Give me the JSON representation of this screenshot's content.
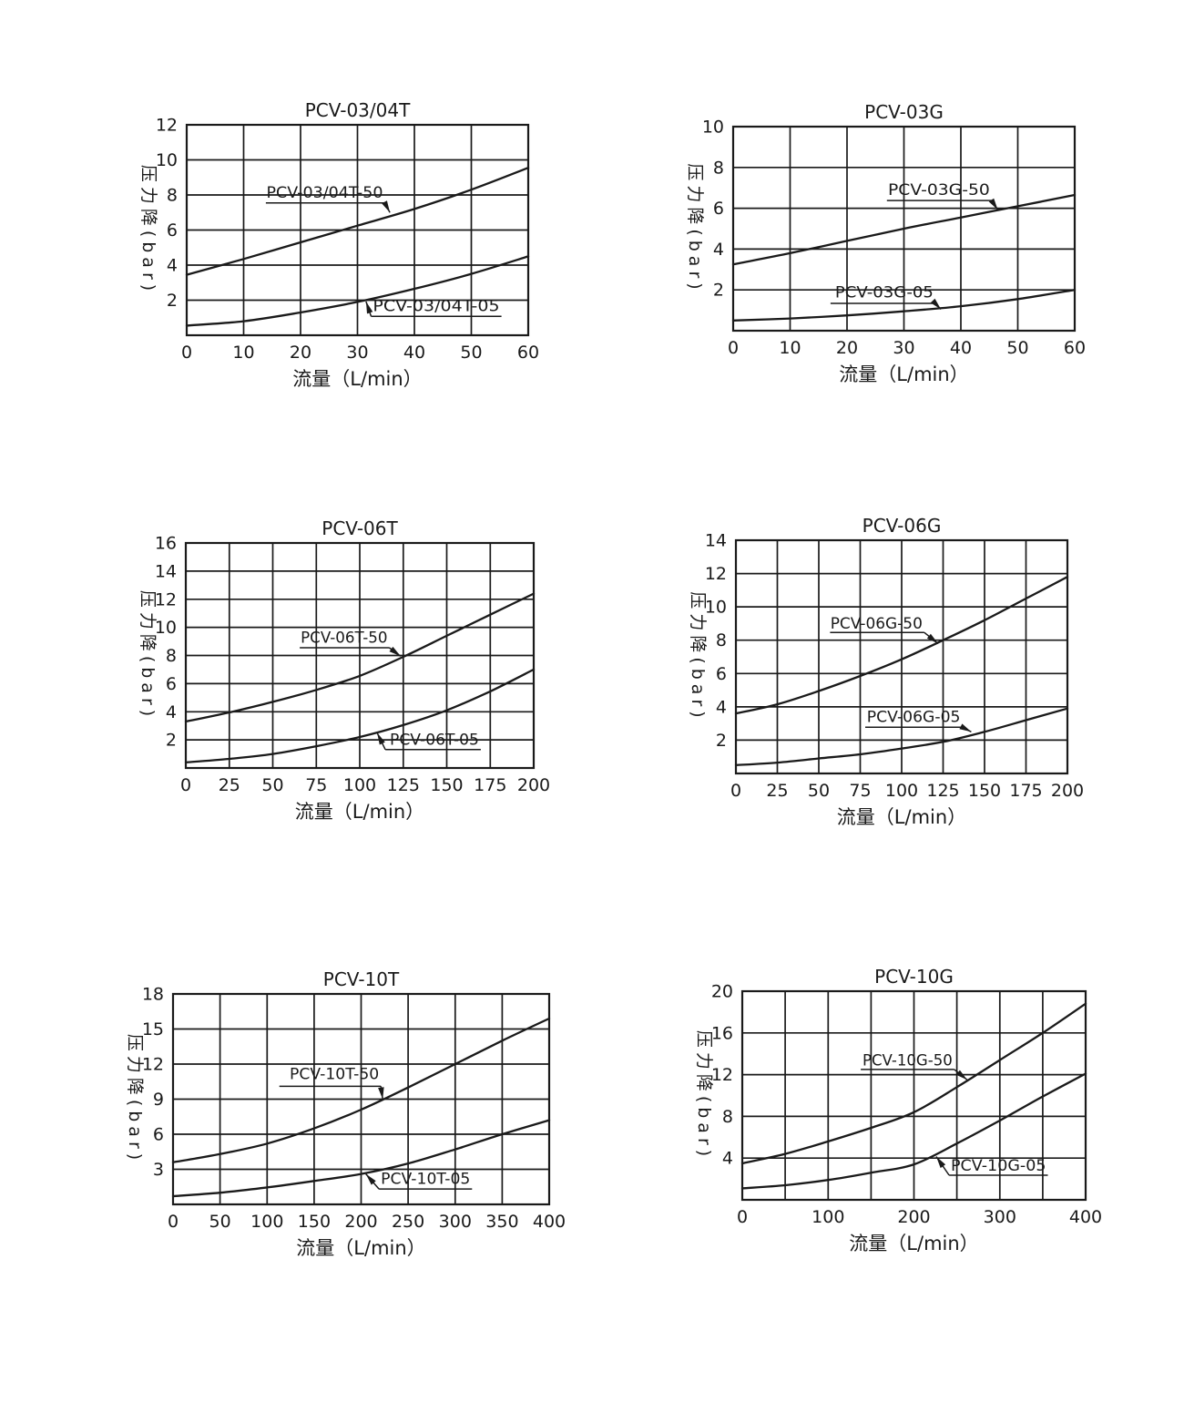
{
  "page": {
    "background": "#ffffff",
    "ink": "#1a1a1a"
  },
  "chart_data": [
    {
      "type": "line",
      "title": "PCV-03/04T",
      "xlabel": "流量（L/min）",
      "ylabel": "压力降(bar)",
      "xlim": [
        0,
        60
      ],
      "ylim": [
        0,
        12
      ],
      "grid": true,
      "legend": "inline-labels",
      "x_gridlines": [
        0,
        10,
        20,
        30,
        40,
        50,
        60
      ],
      "y_gridlines": [
        2,
        4,
        6,
        8,
        10,
        12
      ],
      "x_tick_values": [
        0,
        10,
        20,
        30,
        40,
        50,
        60
      ],
      "x_tick_labels": [
        "0",
        "10",
        "20",
        "30",
        "40",
        "50",
        "60"
      ],
      "y_tick_values": [
        2,
        4,
        6,
        8,
        10,
        12
      ],
      "y_tick_labels": [
        "2",
        "4",
        "6",
        "8",
        "10",
        "12"
      ],
      "series": [
        {
          "name": "PCV-03/04T-50",
          "x": [
            0,
            10,
            20,
            30,
            40,
            50,
            60
          ],
          "y": [
            3.45,
            4.35,
            5.3,
            6.25,
            7.2,
            8.3,
            9.55
          ]
        },
        {
          "name": "PCV-03/04T-05",
          "x": [
            0,
            10,
            20,
            30,
            40,
            50,
            60
          ],
          "y": [
            0.55,
            0.8,
            1.3,
            1.9,
            2.65,
            3.5,
            4.5
          ]
        }
      ],
      "annotations": [
        {
          "text": "PCV-03/04T-50",
          "text_x": 14,
          "baseline_y": 7.85,
          "underline": [
            13.9,
            34.8
          ],
          "underline_y": 7.55,
          "arrow_from": "right",
          "arrow_tip": [
            35.7,
            7.0
          ]
        },
        {
          "text": "PCV-03/04T-05",
          "text_x": 32.7,
          "baseline_y": 1.37,
          "underline": [
            32.4,
            55.3
          ],
          "underline_y": 1.08,
          "arrow_from": "left",
          "arrow_tip": [
            31.5,
            1.92
          ]
        }
      ]
    },
    {
      "type": "line",
      "title": "PCV-03G",
      "xlabel": "流量（L/min）",
      "ylabel": "压力降(bar)",
      "xlim": [
        0,
        60
      ],
      "ylim": [
        0,
        10
      ],
      "grid": true,
      "legend": "inline-labels",
      "x_gridlines": [
        0,
        10,
        20,
        30,
        40,
        50,
        60
      ],
      "y_gridlines": [
        2,
        4,
        6,
        8,
        10
      ],
      "x_tick_values": [
        0,
        10,
        20,
        30,
        40,
        50,
        60
      ],
      "x_tick_labels": [
        "0",
        "10",
        "20",
        "30",
        "40",
        "50",
        "60"
      ],
      "y_tick_values": [
        2,
        4,
        6,
        8,
        10
      ],
      "y_tick_labels": [
        "2",
        "4",
        "6",
        "8",
        "10"
      ],
      "series": [
        {
          "name": "PCV-03G-50",
          "x": [
            0,
            10,
            20,
            30,
            40,
            50,
            60
          ],
          "y": [
            3.25,
            3.8,
            4.4,
            5.0,
            5.55,
            6.1,
            6.65
          ]
        },
        {
          "name": "PCV-03G-05",
          "x": [
            0,
            10,
            20,
            30,
            40,
            50,
            60
          ],
          "y": [
            0.5,
            0.6,
            0.75,
            0.95,
            1.2,
            1.55,
            2.0
          ]
        }
      ],
      "annotations": [
        {
          "text": "PCV-03G-50",
          "text_x": 27.2,
          "baseline_y": 6.65,
          "underline": [
            27.0,
            45.4
          ],
          "underline_y": 6.38,
          "arrow_from": "right",
          "arrow_tip": [
            46.5,
            5.92
          ]
        },
        {
          "text": "PCV-03G-05",
          "text_x": 17.9,
          "baseline_y": 1.62,
          "underline": [
            17.1,
            35.5
          ],
          "underline_y": 1.34,
          "arrow_from": "right",
          "arrow_tip": [
            36.5,
            1.05
          ]
        }
      ]
    },
    {
      "type": "line",
      "title": "PCV-06T",
      "xlabel": "流量（L/min）",
      "ylabel": "压力降(bar)",
      "xlim": [
        0,
        200
      ],
      "ylim": [
        0,
        16
      ],
      "grid": true,
      "legend": "inline-labels",
      "x_gridlines": [
        0,
        25,
        50,
        75,
        100,
        125,
        150,
        175,
        200
      ],
      "y_gridlines": [
        2,
        4,
        6,
        8,
        10,
        12,
        14,
        16
      ],
      "x_tick_values": [
        0,
        25,
        50,
        75,
        100,
        125,
        150,
        175,
        200
      ],
      "x_tick_labels": [
        "0",
        "25",
        "50",
        "75",
        "100",
        "125",
        "150",
        "175",
        "200"
      ],
      "y_tick_values": [
        2,
        4,
        6,
        8,
        10,
        12,
        14,
        16
      ],
      "y_tick_labels": [
        "2",
        "4",
        "6",
        "8",
        "10",
        "12",
        "14",
        "16"
      ],
      "series": [
        {
          "name": "PCV-06T-50",
          "x": [
            0,
            25,
            50,
            75,
            100,
            125,
            150,
            175,
            200
          ],
          "y": [
            3.3,
            3.95,
            4.7,
            5.55,
            6.55,
            7.9,
            9.4,
            10.9,
            12.4
          ]
        },
        {
          "name": "PCV-06T-05",
          "x": [
            0,
            25,
            50,
            75,
            100,
            125,
            150,
            175,
            200
          ],
          "y": [
            0.4,
            0.65,
            1.0,
            1.55,
            2.2,
            3.05,
            4.1,
            5.45,
            7.0
          ]
        }
      ],
      "annotations": [
        {
          "text": "PCV-06T-50",
          "text_x": 66,
          "baseline_y": 8.9,
          "underline": [
            65.5,
            117
          ],
          "underline_y": 8.55,
          "arrow_from": "right",
          "arrow_tip": [
            123.5,
            7.95
          ]
        },
        {
          "text": "PCV-06T-05",
          "text_x": 117.3,
          "baseline_y": 1.64,
          "underline": [
            114.7,
            169.6
          ],
          "underline_y": 1.31,
          "arrow_from": "left",
          "arrow_tip": [
            110,
            2.5
          ]
        }
      ]
    },
    {
      "type": "line",
      "title": "PCV-06G",
      "xlabel": "流量（L/min）",
      "ylabel": "压力降(bar)",
      "xlim": [
        0,
        200
      ],
      "ylim": [
        0,
        14
      ],
      "grid": true,
      "legend": "inline-labels",
      "x_gridlines": [
        0,
        25,
        50,
        75,
        100,
        125,
        150,
        175,
        200
      ],
      "y_gridlines": [
        2,
        4,
        6,
        8,
        10,
        12,
        14
      ],
      "x_tick_values": [
        0,
        25,
        50,
        75,
        100,
        125,
        150,
        175,
        200
      ],
      "x_tick_labels": [
        "0",
        "25",
        "50",
        "75",
        "100",
        "125",
        "150",
        "175",
        "200"
      ],
      "y_tick_values": [
        2,
        4,
        6,
        8,
        10,
        12,
        14
      ],
      "y_tick_labels": [
        "2",
        "4",
        "6",
        "8",
        "10",
        "12",
        "14"
      ],
      "series": [
        {
          "name": "PCV-06G-50",
          "x": [
            0,
            25,
            50,
            75,
            100,
            125,
            150,
            175,
            200
          ],
          "y": [
            3.6,
            4.15,
            4.95,
            5.85,
            6.85,
            8.0,
            9.2,
            10.5,
            11.8
          ]
        },
        {
          "name": "PCV-06G-05",
          "x": [
            0,
            25,
            50,
            75,
            100,
            125,
            150,
            175,
            200
          ],
          "y": [
            0.5,
            0.65,
            0.9,
            1.15,
            1.5,
            1.9,
            2.5,
            3.2,
            3.9
          ]
        }
      ],
      "annotations": [
        {
          "text": "PCV-06G-50",
          "text_x": 57,
          "baseline_y": 8.7,
          "underline": [
            56.8,
            113.7
          ],
          "underline_y": 8.46,
          "arrow_from": "right",
          "arrow_tip": [
            122,
            7.8
          ]
        },
        {
          "text": "PCV-06G-05",
          "text_x": 79,
          "baseline_y": 3.1,
          "underline": [
            78,
            136.5
          ],
          "underline_y": 2.78,
          "arrow_from": "right",
          "arrow_tip": [
            142,
            2.5
          ]
        }
      ]
    },
    {
      "type": "line",
      "title": "PCV-10T",
      "xlabel": "流量（L/min）",
      "ylabel": "压力降(bar)",
      "xlim": [
        0,
        400
      ],
      "ylim": [
        0,
        18
      ],
      "grid": true,
      "legend": "inline-labels",
      "x_gridlines": [
        0,
        50,
        100,
        150,
        200,
        250,
        300,
        350,
        400
      ],
      "y_gridlines": [
        3,
        6,
        9,
        12,
        15,
        18
      ],
      "x_tick_values": [
        0,
        50,
        100,
        150,
        200,
        250,
        300,
        350,
        400
      ],
      "x_tick_labels": [
        "0",
        "50",
        "100",
        "150",
        "200",
        "250",
        "300",
        "350",
        "400"
      ],
      "y_tick_values": [
        3,
        6,
        9,
        12,
        15,
        18
      ],
      "y_tick_labels": [
        "3",
        "6",
        "9",
        "12",
        "15",
        "18"
      ],
      "series": [
        {
          "name": "PCV-10T-50",
          "x": [
            0,
            50,
            100,
            150,
            200,
            250,
            300,
            350,
            400
          ],
          "y": [
            3.6,
            4.3,
            5.2,
            6.5,
            8.1,
            10.0,
            12.0,
            14.0,
            15.9
          ]
        },
        {
          "name": "PCV-10T-05",
          "x": [
            0,
            50,
            100,
            150,
            200,
            250,
            300,
            350,
            400
          ],
          "y": [
            0.7,
            1.0,
            1.45,
            2.0,
            2.6,
            3.5,
            4.7,
            6.0,
            7.2
          ]
        }
      ],
      "annotations": [
        {
          "text": "PCV-10T-50",
          "text_x": 124,
          "baseline_y": 10.7,
          "underline": [
            113,
            221
          ],
          "underline_y": 10.1,
          "arrow_from": "right",
          "arrow_tip": [
            223,
            9.0
          ]
        },
        {
          "text": "PCV-10T-05",
          "text_x": 221,
          "baseline_y": 1.75,
          "underline": [
            219,
            318
          ],
          "underline_y": 1.32,
          "arrow_from": "left",
          "arrow_tip": [
            205,
            2.6
          ]
        }
      ]
    },
    {
      "type": "line",
      "title": "PCV-10G",
      "xlabel": "流量（L/min）",
      "ylabel": "压力降(bar)",
      "xlim": [
        0,
        400
      ],
      "ylim": [
        0,
        20
      ],
      "grid": true,
      "legend": "inline-labels",
      "x_gridlines": [
        0,
        50,
        100,
        150,
        200,
        250,
        300,
        350,
        400
      ],
      "y_gridlines": [
        4,
        8,
        12,
        16,
        20
      ],
      "x_tick_values": [
        0,
        100,
        200,
        300,
        400
      ],
      "x_tick_labels": [
        "0",
        "100",
        "200",
        "300",
        "400"
      ],
      "y_tick_values": [
        4,
        8,
        12,
        16,
        20
      ],
      "y_tick_labels": [
        "4",
        "8",
        "12",
        "16",
        "20"
      ],
      "series": [
        {
          "name": "PCV-10G-50",
          "x": [
            0,
            50,
            100,
            150,
            200,
            250,
            300,
            350,
            400
          ],
          "y": [
            3.5,
            4.4,
            5.6,
            6.9,
            8.4,
            10.8,
            13.4,
            16.0,
            18.8
          ]
        },
        {
          "name": "PCV-10G-05",
          "x": [
            0,
            50,
            100,
            150,
            200,
            250,
            300,
            350,
            400
          ],
          "y": [
            1.1,
            1.4,
            1.9,
            2.6,
            3.4,
            5.4,
            7.6,
            9.9,
            12.1
          ]
        }
      ],
      "annotations": [
        {
          "text": "PCV-10G-50",
          "text_x": 140,
          "baseline_y": 12.9,
          "underline": [
            138,
            247
          ],
          "underline_y": 12.5,
          "arrow_from": "right",
          "arrow_tip": [
            262,
            11.5
          ]
        },
        {
          "text": "PCV-10G-05",
          "text_x": 243,
          "baseline_y": 2.8,
          "underline": [
            241,
            356
          ],
          "underline_y": 2.36,
          "arrow_from": "left",
          "arrow_tip": [
            226,
            4.15
          ]
        }
      ]
    }
  ]
}
